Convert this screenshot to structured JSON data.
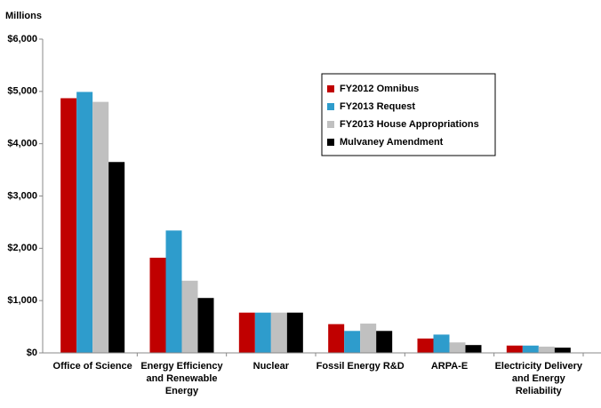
{
  "chart_data": {
    "type": "bar",
    "y_label": "Millions",
    "categories": [
      "Office of Science",
      "Energy Efficiency and Renewable Energy",
      "Nuclear",
      "Fossil Energy R&D",
      "ARPA-E",
      "Electricity Delivery and Energy Reliability"
    ],
    "series": [
      {
        "name": "FY2012 Omnibus",
        "color": "#c00000",
        "values": [
          4870,
          1820,
          770,
          550,
          275,
          140
        ]
      },
      {
        "name": "FY2013 Request",
        "color": "#2e9ccc",
        "values": [
          4990,
          2340,
          770,
          420,
          350,
          140
        ]
      },
      {
        "name": "FY2013 House Appropriations",
        "color": "#c0c0c0",
        "values": [
          4800,
          1380,
          770,
          560,
          200,
          120
        ]
      },
      {
        "name": "Mulvaney Amendment",
        "color": "#000000",
        "values": [
          3650,
          1050,
          770,
          420,
          150,
          100
        ]
      }
    ],
    "ylim": [
      0,
      6000
    ],
    "yticks": [
      {
        "value": 0,
        "label": "$0"
      },
      {
        "value": 1000,
        "label": "$1,000"
      },
      {
        "value": 2000,
        "label": "$2,000"
      },
      {
        "value": 3000,
        "label": "$3,000"
      },
      {
        "value": 4000,
        "label": "$4,000"
      },
      {
        "value": 5000,
        "label": "$5,000"
      },
      {
        "value": 6000,
        "label": "$6,000"
      }
    ],
    "legend": "upper right"
  }
}
